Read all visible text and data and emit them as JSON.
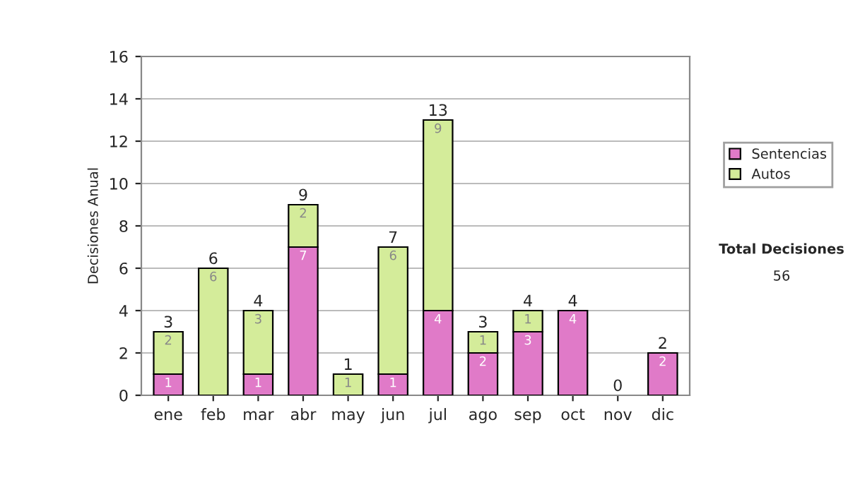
{
  "chart_data": {
    "type": "bar",
    "stacked": true,
    "ylabel": "Decisiones Anual",
    "categories": [
      "ene",
      "feb",
      "mar",
      "abr",
      "may",
      "jun",
      "jul",
      "ago",
      "sep",
      "oct",
      "nov",
      "dic"
    ],
    "series": [
      {
        "name": "Sentencias",
        "color": "#e07ac8",
        "values": [
          1,
          0,
          1,
          7,
          0,
          1,
          4,
          2,
          3,
          4,
          0,
          2
        ],
        "value_labels": [
          "1",
          null,
          "1",
          "7",
          null,
          "1",
          "4",
          "2",
          "3",
          "4",
          null,
          "2"
        ]
      },
      {
        "name": "Autos",
        "color": "#d4ec9a",
        "values": [
          2,
          6,
          3,
          2,
          1,
          6,
          9,
          1,
          1,
          0,
          0,
          0
        ],
        "value_labels": [
          "2",
          "6",
          "3",
          "2",
          "1",
          "6",
          "9",
          "1",
          "1",
          null,
          null,
          null
        ]
      }
    ],
    "totals": [
      "3",
      "6",
      "4",
      "9",
      "1",
      "7",
      "13",
      "3",
      "4",
      "4",
      "0",
      "2"
    ],
    "ylim": [
      0,
      16
    ],
    "yticks": [
      0,
      2,
      4,
      6,
      8,
      10,
      12,
      14,
      16
    ],
    "grid": "y",
    "legend": "right",
    "annotations": [
      "Total Decisiones",
      "56"
    ]
  }
}
